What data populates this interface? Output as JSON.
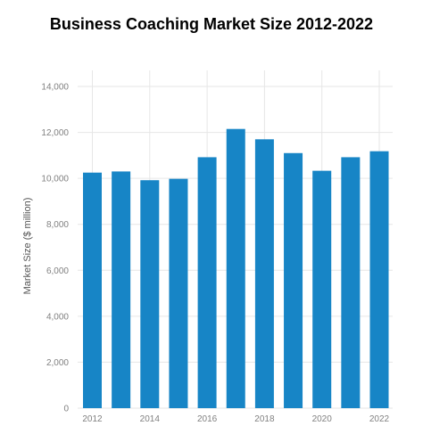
{
  "chart_data": {
    "type": "bar",
    "title": "Business Coaching Market Size 2012-2022",
    "xlabel": "",
    "ylabel": "Market Size ($ million)",
    "categories": [
      "2012",
      "2013",
      "2014",
      "2015",
      "2016",
      "2017",
      "2018",
      "2019",
      "2020",
      "2021",
      "2022"
    ],
    "values": [
      10250,
      10300,
      9920,
      9980,
      10920,
      12150,
      11700,
      11100,
      10330,
      10920,
      11180
    ],
    "x_tick_labels": [
      "2012",
      "2014",
      "2016",
      "2018",
      "2020",
      "2022"
    ],
    "y_ticks": [
      "0",
      "2,000",
      "4,000",
      "6,000",
      "8,000",
      "10,000",
      "12,000",
      "14,000"
    ],
    "ylim": [
      0,
      14000
    ],
    "grid": true,
    "legend": "none",
    "colors": {
      "bar": "#1785c6",
      "grid": "#e6e6e6",
      "tick_text": "#808080",
      "title_text": "#000000"
    }
  }
}
